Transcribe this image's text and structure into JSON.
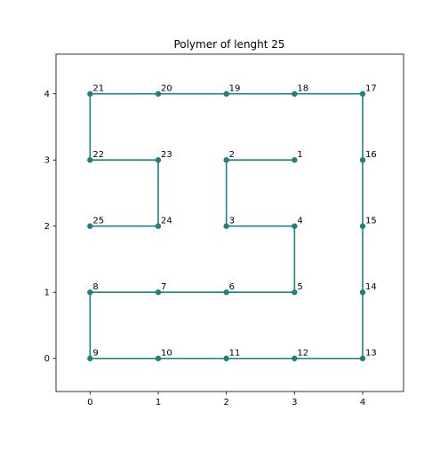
{
  "chart_data": {
    "type": "line",
    "title": "Polymer of lenght 25",
    "xlabel": "",
    "ylabel": "",
    "xlim": [
      -0.5,
      4.6
    ],
    "ylim": [
      -0.5,
      4.6
    ],
    "xticks": [
      "0",
      "1",
      "2",
      "3",
      "4"
    ],
    "yticks": [
      "0",
      "1",
      "2",
      "3",
      "4"
    ],
    "grid": false,
    "series": [
      {
        "color": "#1f8080",
        "points": [
          {
            "label": "1",
            "x": 3,
            "y": 3
          },
          {
            "label": "2",
            "x": 2,
            "y": 3
          },
          {
            "label": "3",
            "x": 2,
            "y": 2
          },
          {
            "label": "4",
            "x": 3,
            "y": 2
          },
          {
            "label": "5",
            "x": 3,
            "y": 1
          },
          {
            "label": "6",
            "x": 2,
            "y": 1
          },
          {
            "label": "7",
            "x": 1,
            "y": 1
          },
          {
            "label": "8",
            "x": 0,
            "y": 1
          },
          {
            "label": "9",
            "x": 0,
            "y": 0
          },
          {
            "label": "10",
            "x": 1,
            "y": 0
          },
          {
            "label": "11",
            "x": 2,
            "y": 0
          },
          {
            "label": "12",
            "x": 3,
            "y": 0
          },
          {
            "label": "13",
            "x": 4,
            "y": 0
          },
          {
            "label": "14",
            "x": 4,
            "y": 1
          },
          {
            "label": "15",
            "x": 4,
            "y": 2
          },
          {
            "label": "16",
            "x": 4,
            "y": 3
          },
          {
            "label": "17",
            "x": 4,
            "y": 4
          },
          {
            "label": "18",
            "x": 3,
            "y": 4
          },
          {
            "label": "19",
            "x": 2,
            "y": 4
          },
          {
            "label": "20",
            "x": 1,
            "y": 4
          },
          {
            "label": "21",
            "x": 0,
            "y": 4
          },
          {
            "label": "22",
            "x": 0,
            "y": 3
          },
          {
            "label": "23",
            "x": 1,
            "y": 3
          },
          {
            "label": "24",
            "x": 1,
            "y": 2
          },
          {
            "label": "25",
            "x": 0,
            "y": 2
          }
        ]
      }
    ]
  }
}
